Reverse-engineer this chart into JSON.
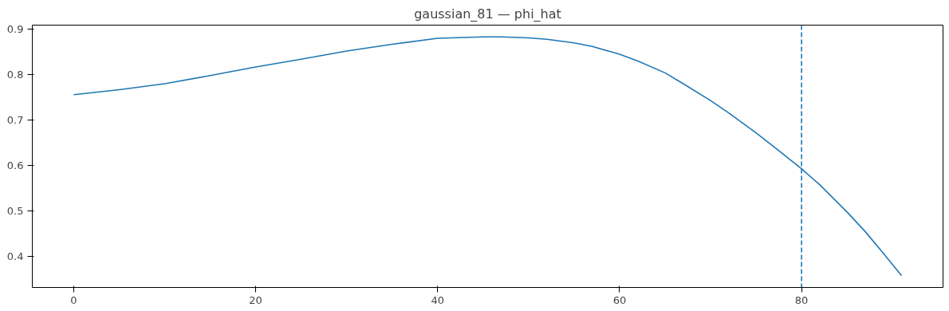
{
  "chart_data": {
    "type": "line",
    "title": "gaussian_81 — phi_hat",
    "x": [
      0,
      5,
      10,
      15,
      20,
      25,
      30,
      35,
      40,
      45,
      47,
      50,
      52,
      55,
      57,
      60,
      62,
      65,
      67,
      70,
      72,
      75,
      77,
      80,
      82,
      85,
      87,
      89,
      91
    ],
    "series": [
      {
        "color": "#1f77b4",
        "values": [
          0.756,
          0.767,
          0.78,
          0.798,
          0.817,
          0.834,
          0.852,
          0.867,
          0.88,
          0.883,
          0.883,
          0.881,
          0.878,
          0.87,
          0.862,
          0.845,
          0.83,
          0.804,
          0.78,
          0.743,
          0.716,
          0.672,
          0.641,
          0.593,
          0.558,
          0.498,
          0.455,
          0.407,
          0.358
        ]
      }
    ],
    "xlim": [
      -4.55,
      95.55
    ],
    "ylim": [
      0.332,
      0.909
    ],
    "xticks": [
      0,
      20,
      40,
      60,
      80
    ],
    "yticks": [
      0.4,
      0.5,
      0.6,
      0.7,
      0.8,
      0.9
    ],
    "ref_lines": [
      {
        "axis": "x",
        "value": 80,
        "color": "#1f77b4",
        "line_style": "dashed"
      }
    ],
    "grid": false,
    "marker": "none",
    "line_style": "solid"
  }
}
